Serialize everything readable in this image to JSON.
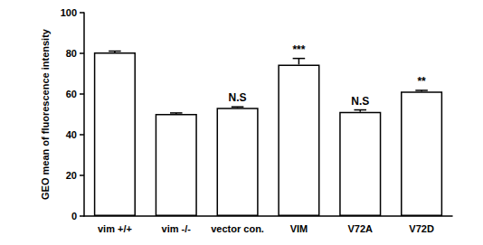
{
  "chart_data": {
    "type": "bar",
    "y_label": "GEO mean of fluorescence intensity",
    "categories": [
      "vim +/+",
      "vim -/-",
      "vector con.",
      "VIM",
      "V72A",
      "V72D"
    ],
    "values": [
      80.5,
      50.2,
      53.2,
      74.5,
      51.2,
      61.2
    ],
    "errors": [
      0.6,
      0.5,
      0.5,
      3.0,
      1.0,
      0.6
    ],
    "annotations": [
      null,
      null,
      "N.S",
      "***",
      "N.S",
      "**"
    ],
    "color": "#ffffff",
    "ylim": [
      0,
      100
    ],
    "yticks": [
      0,
      20,
      40,
      60,
      80,
      100
    ],
    "grid": false
  }
}
